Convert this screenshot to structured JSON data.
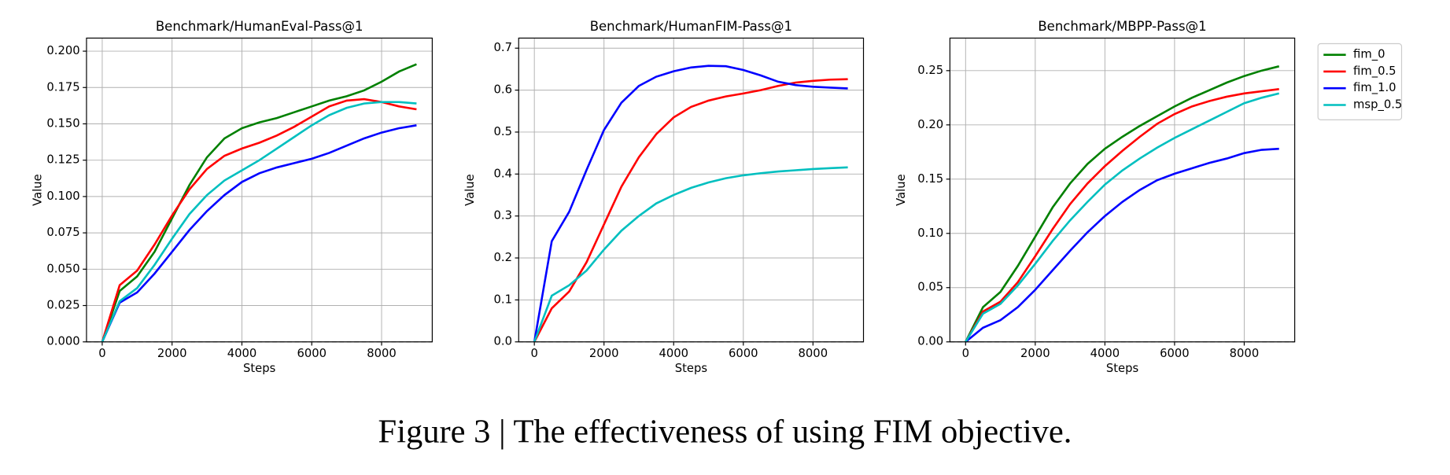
{
  "chart_data": [
    {
      "type": "line",
      "title": "Benchmark/HumanEval-Pass@1",
      "xlabel": "Steps",
      "ylabel": "Value",
      "grid": true,
      "x": [
        0,
        500,
        1000,
        1500,
        2000,
        2500,
        3000,
        3500,
        4000,
        4500,
        5000,
        5500,
        6000,
        6500,
        7000,
        7500,
        8000,
        8500,
        9000
      ],
      "xlim": [
        -450,
        9450
      ],
      "xticks": [
        0,
        2000,
        4000,
        6000,
        8000
      ],
      "ylim": [
        0,
        0.209
      ],
      "yticks": [
        {
          "value": 0,
          "label": "0.000"
        },
        {
          "value": 0.025,
          "label": "0.025"
        },
        {
          "value": 0.05,
          "label": "0.050"
        },
        {
          "value": 0.075,
          "label": "0.075"
        },
        {
          "value": 0.1,
          "label": "0.100"
        },
        {
          "value": 0.125,
          "label": "0.125"
        },
        {
          "value": 0.15,
          "label": "0.150"
        },
        {
          "value": 0.175,
          "label": "0.175"
        },
        {
          "value": 0.2,
          "label": "0.200"
        }
      ],
      "series": [
        {
          "name": "fim_0",
          "color": "#008000",
          "values": [
            0,
            0.035,
            0.045,
            0.062,
            0.085,
            0.108,
            0.127,
            0.14,
            0.147,
            0.151,
            0.154,
            0.158,
            0.162,
            0.166,
            0.169,
            0.173,
            0.179,
            0.186,
            0.191
          ]
        },
        {
          "name": "fim_0.5",
          "color": "#ff0000",
          "values": [
            0,
            0.039,
            0.049,
            0.067,
            0.087,
            0.105,
            0.119,
            0.128,
            0.133,
            0.137,
            0.142,
            0.148,
            0.155,
            0.162,
            0.166,
            0.167,
            0.165,
            0.162,
            0.16
          ]
        },
        {
          "name": "fim_1.0",
          "color": "#0000ff",
          "values": [
            0,
            0.027,
            0.034,
            0.047,
            0.062,
            0.077,
            0.09,
            0.101,
            0.11,
            0.116,
            0.12,
            0.123,
            0.126,
            0.13,
            0.135,
            0.14,
            0.144,
            0.147,
            0.149
          ]
        },
        {
          "name": "msp_0.5",
          "color": "#00bfbf",
          "values": [
            0,
            0.028,
            0.037,
            0.053,
            0.071,
            0.088,
            0.101,
            0.111,
            0.118,
            0.125,
            0.133,
            0.141,
            0.149,
            0.156,
            0.161,
            0.164,
            0.165,
            0.165,
            0.164
          ]
        }
      ]
    },
    {
      "type": "line",
      "title": "Benchmark/HumanFIM-Pass@1",
      "xlabel": "Steps",
      "ylabel": "Value",
      "grid": true,
      "x": [
        0,
        500,
        1000,
        1500,
        2000,
        2500,
        3000,
        3500,
        4000,
        4500,
        5000,
        5500,
        6000,
        6500,
        7000,
        7500,
        8000,
        8500,
        9000
      ],
      "xlim": [
        -450,
        9450
      ],
      "xticks": [
        0,
        2000,
        4000,
        6000,
        8000
      ],
      "ylim": [
        0,
        0.724
      ],
      "yticks": [
        {
          "value": 0,
          "label": "0.0"
        },
        0.1,
        0.2,
        0.3,
        0.4,
        0.5,
        0.6,
        0.7
      ],
      "series": [
        {
          "name": "fim_0.5",
          "color": "#ff0000",
          "values": [
            0,
            0.08,
            0.12,
            0.19,
            0.28,
            0.37,
            0.44,
            0.495,
            0.535,
            0.56,
            0.575,
            0.585,
            0.592,
            0.6,
            0.61,
            0.618,
            0.622,
            0.625,
            0.626
          ]
        },
        {
          "name": "fim_1.0",
          "color": "#0000ff",
          "values": [
            0,
            0.24,
            0.31,
            0.41,
            0.505,
            0.57,
            0.61,
            0.632,
            0.645,
            0.654,
            0.658,
            0.657,
            0.648,
            0.635,
            0.62,
            0.612,
            0.608,
            0.606,
            0.604
          ]
        },
        {
          "name": "msp_0.5",
          "color": "#00bfbf",
          "values": [
            0,
            0.11,
            0.135,
            0.17,
            0.22,
            0.265,
            0.3,
            0.33,
            0.35,
            0.367,
            0.38,
            0.39,
            0.397,
            0.402,
            0.406,
            0.409,
            0.412,
            0.414,
            0.416
          ]
        }
      ]
    },
    {
      "type": "line",
      "title": "Benchmark/MBPP-Pass@1",
      "xlabel": "Steps",
      "ylabel": "Value",
      "grid": true,
      "legend": "outside right",
      "x": [
        0,
        500,
        1000,
        1500,
        2000,
        2500,
        3000,
        3500,
        4000,
        4500,
        5000,
        5500,
        6000,
        6500,
        7000,
        7500,
        8000,
        8500,
        9000
      ],
      "xlim": [
        -450,
        9450
      ],
      "xticks": [
        0,
        2000,
        4000,
        6000,
        8000
      ],
      "ylim": [
        0,
        0.28
      ],
      "yticks": [
        {
          "value": 0,
          "label": "0.00"
        },
        0.05,
        {
          "value": 0.1,
          "label": "0.10"
        },
        0.15,
        {
          "value": 0.2,
          "label": "0.20"
        },
        0.25
      ],
      "series": [
        {
          "name": "fim_0",
          "color": "#008000",
          "values": [
            0,
            0.032,
            0.046,
            0.07,
            0.097,
            0.124,
            0.146,
            0.164,
            0.178,
            0.189,
            0.199,
            0.208,
            0.217,
            0.225,
            0.232,
            0.239,
            0.245,
            0.25,
            0.254
          ]
        },
        {
          "name": "fim_0.5",
          "color": "#ff0000",
          "values": [
            0,
            0.028,
            0.037,
            0.055,
            0.079,
            0.104,
            0.127,
            0.146,
            0.162,
            0.176,
            0.189,
            0.201,
            0.21,
            0.217,
            0.222,
            0.226,
            0.229,
            0.231,
            0.233
          ]
        },
        {
          "name": "fim_1.0",
          "color": "#0000ff",
          "values": [
            0,
            0.013,
            0.02,
            0.032,
            0.048,
            0.066,
            0.084,
            0.101,
            0.116,
            0.129,
            0.14,
            0.149,
            0.155,
            0.16,
            0.165,
            0.169,
            0.174,
            0.177,
            0.178
          ]
        },
        {
          "name": "msp_0.5",
          "color": "#00bfbf",
          "values": [
            0,
            0.026,
            0.035,
            0.052,
            0.072,
            0.093,
            0.112,
            0.129,
            0.145,
            0.158,
            0.169,
            0.179,
            0.188,
            0.196,
            0.204,
            0.212,
            0.22,
            0.225,
            0.229
          ]
        }
      ]
    }
  ],
  "caption": "Figure 3 | The effectiveness of using FIM objective."
}
